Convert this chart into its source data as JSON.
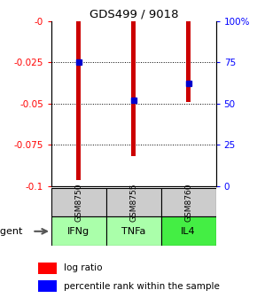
{
  "title": "GDS499 / 9018",
  "samples": [
    "GSM8750",
    "GSM8755",
    "GSM8760"
  ],
  "agents": [
    "IFNg",
    "TNFa",
    "IL4"
  ],
  "log_ratios": [
    -0.096,
    -0.082,
    -0.049
  ],
  "percentile_ranks": [
    75,
    52,
    62
  ],
  "ylim_left": [
    -0.1,
    0
  ],
  "ylim_right": [
    0,
    100
  ],
  "yticks_left": [
    0,
    -0.025,
    -0.05,
    -0.075,
    -0.1
  ],
  "yticks_right": [
    0,
    25,
    50,
    75,
    100
  ],
  "bar_color": "#cc0000",
  "dot_color": "#0000cc",
  "sample_box_color": "#cccccc",
  "agent_colors": [
    "#aaffaa",
    "#aaffaa",
    "#44ee44"
  ],
  "legend_bar_label": "log ratio",
  "legend_dot_label": "percentile rank within the sample",
  "agent_label": "agent",
  "bar_width": 0.08,
  "grid_ticks": [
    -0.025,
    -0.05,
    -0.075
  ],
  "right_tick_labels": [
    "0",
    "25",
    "50",
    "75",
    "100%"
  ]
}
